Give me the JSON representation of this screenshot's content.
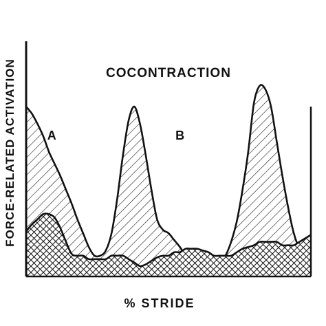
{
  "chart_data": {
    "type": "area",
    "title": "COCONTRACTION",
    "xlabel": "% STRIDE",
    "ylabel": "FORCE-RELATED ACTIVATION",
    "x_ticks_shown": false,
    "y_ticks_shown": false,
    "grid": false,
    "legend": "none",
    "ylim": [
      0,
      100
    ],
    "annotations": [
      {
        "text": "A",
        "x": 9,
        "y": 79
      },
      {
        "text": "B",
        "x": 54,
        "y": 79
      }
    ],
    "series": [
      {
        "label_ref": "A",
        "fill_pattern": "diagonal-hatch",
        "x": [
          0,
          2,
          4,
          6,
          8,
          10,
          12,
          14,
          16,
          18,
          20,
          22,
          24,
          26,
          28,
          30,
          32,
          34,
          36,
          38,
          40,
          42,
          44,
          46,
          48,
          50,
          52,
          54,
          56,
          58,
          60,
          62,
          64,
          66,
          68,
          70,
          72,
          74,
          76,
          78,
          80,
          82,
          84,
          86,
          88,
          90,
          92,
          94,
          96,
          98,
          100
        ],
        "y": [
          98,
          94,
          88,
          81,
          72,
          65,
          58,
          50,
          42,
          33,
          25,
          17,
          12,
          12,
          15,
          25,
          45,
          70,
          90,
          98,
          88,
          70,
          50,
          33,
          27,
          25,
          21,
          17,
          12,
          8,
          5,
          4,
          4,
          5,
          8,
          12,
          20,
          32,
          50,
          72,
          100,
          110,
          108,
          98,
          78,
          58,
          40,
          25,
          16,
          12,
          10
        ]
      },
      {
        "label_ref": "B",
        "fill_pattern": "cross-hatch",
        "x": [
          0,
          2,
          4,
          6,
          8,
          10,
          12,
          14,
          16,
          18,
          20,
          22,
          24,
          26,
          28,
          30,
          32,
          34,
          36,
          38,
          40,
          42,
          44,
          46,
          48,
          50,
          52,
          54,
          56,
          58,
          60,
          62,
          64,
          66,
          68,
          70,
          72,
          74,
          76,
          78,
          80,
          82,
          84,
          86,
          88,
          90,
          92,
          94,
          96,
          98,
          100
        ],
        "y": [
          26,
          30,
          33,
          36,
          36,
          34,
          28,
          20,
          13,
          12,
          12,
          10,
          10,
          10,
          10,
          12,
          12,
          12,
          10,
          8,
          6,
          7,
          9,
          11,
          12,
          12,
          14,
          14,
          16,
          16,
          16,
          15,
          14,
          12,
          12,
          12,
          12,
          14,
          16,
          17,
          18,
          20,
          20,
          20,
          20,
          18,
          18,
          18,
          20,
          22,
          24
        ]
      }
    ]
  }
}
